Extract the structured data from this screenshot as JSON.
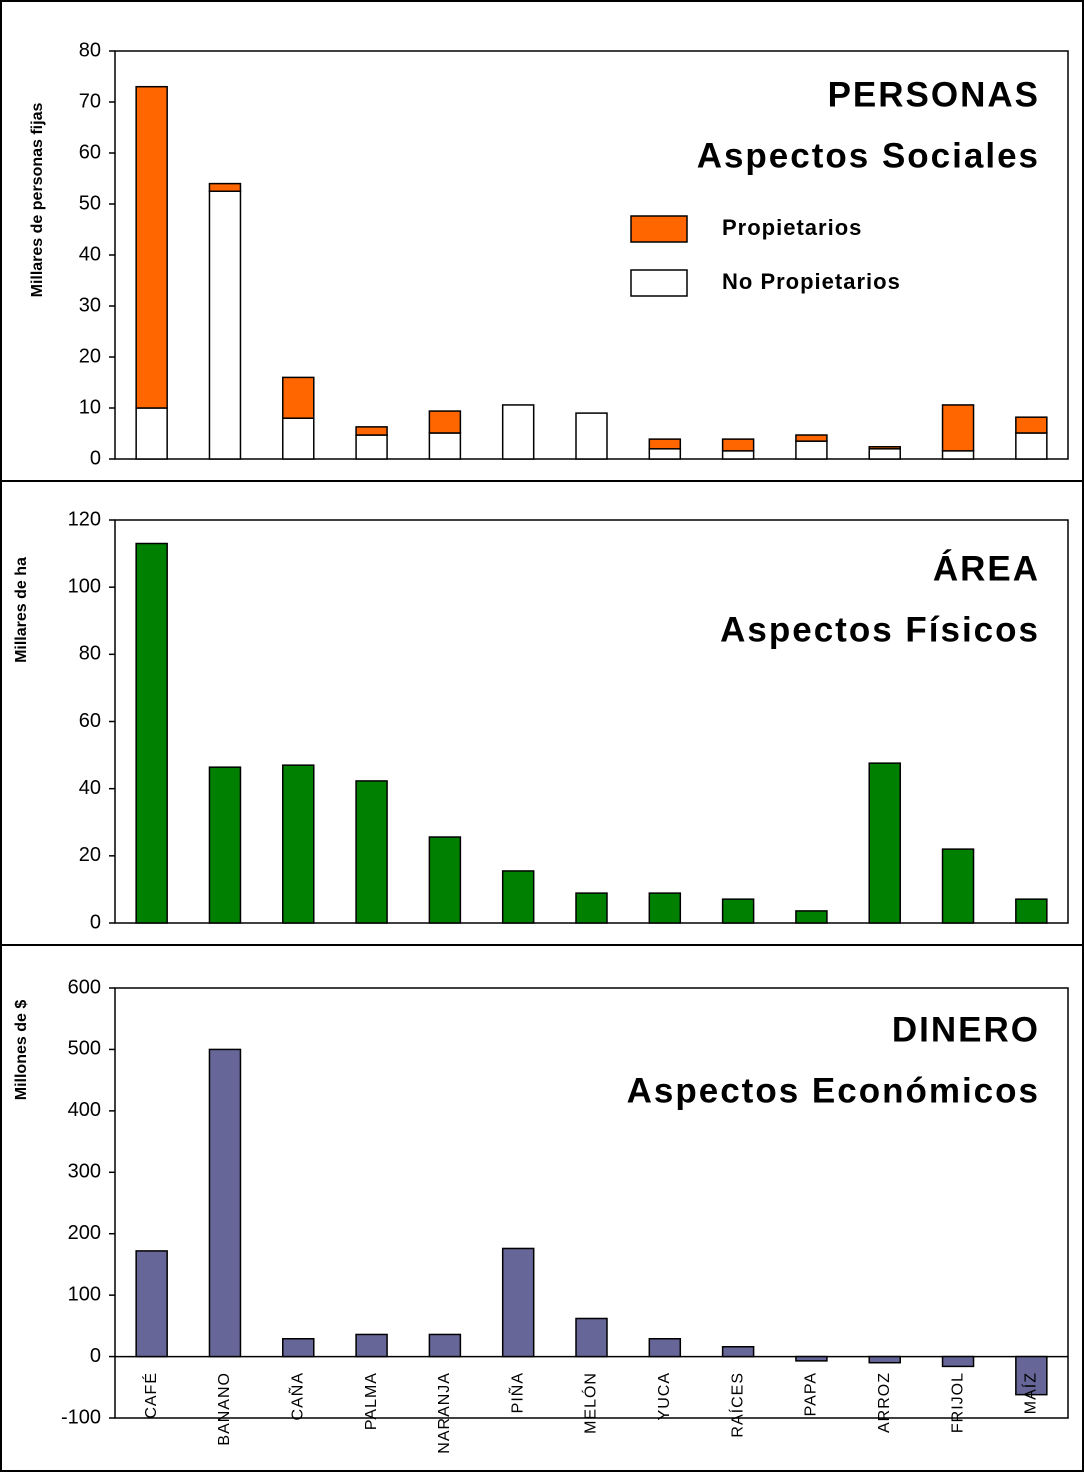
{
  "chart_data": [
    {
      "type": "bar",
      "stacked": true,
      "title": "PERSONAS",
      "subtitle": "Aspectos Sociales",
      "title_color": "#a63a12",
      "y_label": "Millares de personas fijas",
      "series": [
        {
          "name": "No Propietarios",
          "color": "#ffffff",
          "values": [
            10,
            52.5,
            8,
            4.7,
            5.1,
            10.6,
            9,
            2,
            1.6,
            3.5,
            2,
            1.6,
            5.1
          ]
        },
        {
          "name": "Propietarios",
          "color": "#ff6600",
          "values": [
            63,
            1.5,
            8,
            1.6,
            4.3,
            0,
            0,
            1.9,
            2.3,
            1.2,
            0.4,
            9,
            3.1
          ]
        }
      ],
      "ylim": [
        0,
        80
      ],
      "yticks": [
        0,
        10,
        20,
        30,
        40,
        50,
        60,
        70,
        80
      ]
    },
    {
      "type": "bar",
      "title": "ÁREA",
      "subtitle": "Aspectos Físicos",
      "title_color": "#108010",
      "y_label": "Millares de ha",
      "color": "#008000",
      "values": [
        113,
        46.4,
        47,
        42.3,
        25.6,
        15.5,
        8.9,
        8.9,
        7.1,
        3.6,
        47.6,
        22,
        7.1
      ],
      "ylim": [
        0,
        120
      ],
      "yticks": [
        0,
        20,
        40,
        60,
        80,
        100,
        120
      ]
    },
    {
      "type": "bar",
      "title": "DINERO",
      "subtitle": "Aspectos Económicos",
      "title_color": "#1c3a6e",
      "y_label": "Millones de $",
      "color": "#666699",
      "categories": [
        "CAFÉ",
        "BANANO",
        "CAÑA",
        "PALMA",
        "NARANJA",
        "PIÑA",
        "MELÓN",
        "YUCA",
        "RAÍCES",
        "PAPA",
        "ARROZ",
        "FRIJOL",
        "MAÍZ"
      ],
      "values": [
        172,
        500,
        29,
        36,
        36,
        176,
        62,
        29,
        16,
        -7,
        -10,
        -16,
        -62
      ],
      "ylim": [
        -100,
        600
      ],
      "yticks": [
        -100,
        0,
        100,
        200,
        300,
        400,
        500,
        600
      ]
    }
  ]
}
